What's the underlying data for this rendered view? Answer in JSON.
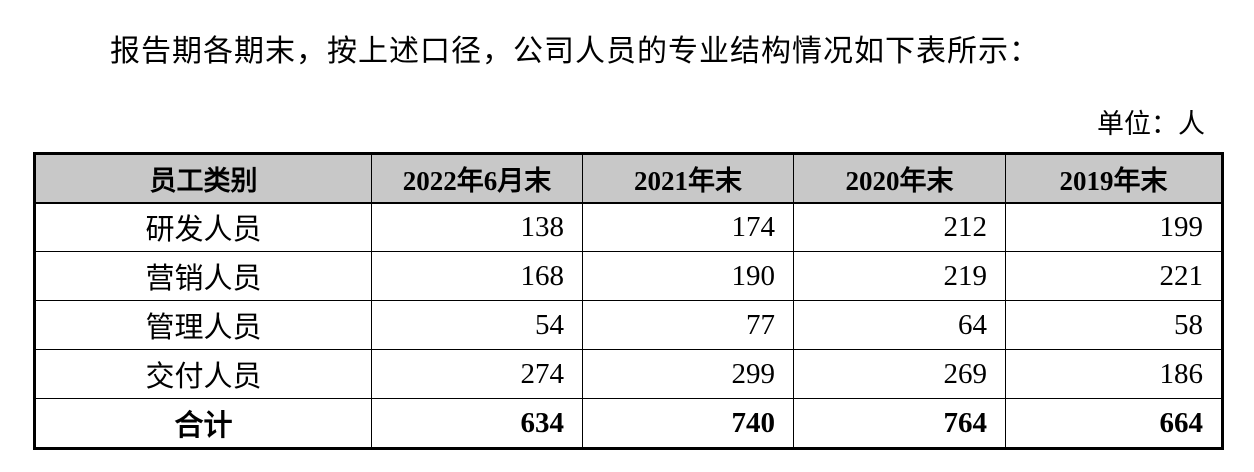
{
  "page": {
    "intro_text": "报告期各期末，按上述口径，公司人员的专业结构情况如下表所示：",
    "unit_label": "单位：人"
  },
  "table": {
    "headers": [
      "员工类别",
      "2022年6月末",
      "2021年末",
      "2020年末",
      "2019年末"
    ],
    "rows": [
      {
        "category": "研发人员",
        "values": [
          "138",
          "174",
          "212",
          "199"
        ]
      },
      {
        "category": "营销人员",
        "values": [
          "168",
          "190",
          "219",
          "221"
        ]
      },
      {
        "category": "管理人员",
        "values": [
          "54",
          "77",
          "64",
          "58"
        ]
      },
      {
        "category": "交付人员",
        "values": [
          "274",
          "299",
          "269",
          "186"
        ]
      }
    ],
    "total_row": {
      "category": "合计",
      "values": [
        "634",
        "740",
        "764",
        "664"
      ]
    }
  },
  "colors": {
    "header_bg": "#c8c8c8",
    "border": "#000000",
    "page_bg": "#ffffff"
  }
}
